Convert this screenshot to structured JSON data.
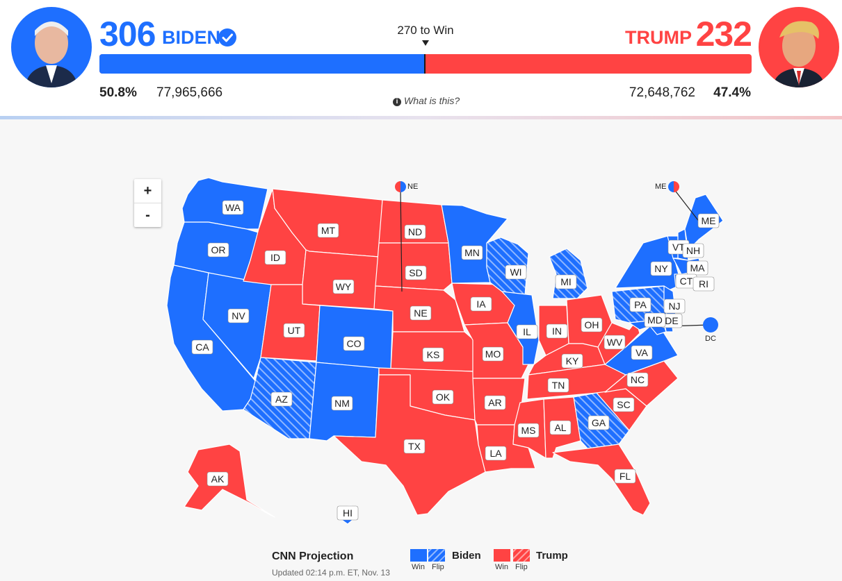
{
  "header": {
    "biden": {
      "ev": "306",
      "name": "BIDEN",
      "pct": "50.8%",
      "votes": "77,965,666",
      "color": "#1e6fff"
    },
    "trump": {
      "ev": "232",
      "name": "TRUMP",
      "pct": "47.4%",
      "votes": "72,648,762",
      "color": "#ff4343"
    },
    "to_win": "270 to Win",
    "what_is_this": "What is this?",
    "biden_share": 0.5
  },
  "zoom": {
    "plus": "+",
    "minus": "-"
  },
  "map": {
    "states": {
      "WA": "D",
      "OR": "D",
      "CA": "D",
      "NV": "D",
      "ID": "R",
      "MT": "R",
      "WY": "R",
      "UT": "R",
      "AZ": "DF",
      "CO": "D",
      "NM": "D",
      "ND": "R",
      "SD": "R",
      "NE": "R",
      "KS": "R",
      "OK": "R",
      "TX": "R",
      "MN": "D",
      "IA": "R",
      "MO": "R",
      "AR": "R",
      "LA": "R",
      "WI": "DF",
      "IL": "D",
      "MI": "DF",
      "IN": "R",
      "OH": "R",
      "KY": "R",
      "TN": "R",
      "MS": "R",
      "AL": "R",
      "GA": "DF",
      "FL": "R",
      "SC": "R",
      "NC": "R",
      "VA": "D",
      "WV": "R",
      "PA": "DF",
      "NY": "D",
      "VT": "D",
      "NH": "D",
      "ME": "D",
      "MA": "D",
      "CT": "D",
      "RI": "D",
      "NJ": "D",
      "DE": "D",
      "MD": "D",
      "AK": "R",
      "HI": "D"
    },
    "callouts": {
      "ne": "NE",
      "me": "ME",
      "dc": "DC"
    }
  },
  "legend": {
    "title": "CNN Projection",
    "updated": "Updated 02:14 p.m. ET, Nov. 13",
    "biden": "Biden",
    "trump": "Trump",
    "win": "Win",
    "flip": "Flip"
  }
}
